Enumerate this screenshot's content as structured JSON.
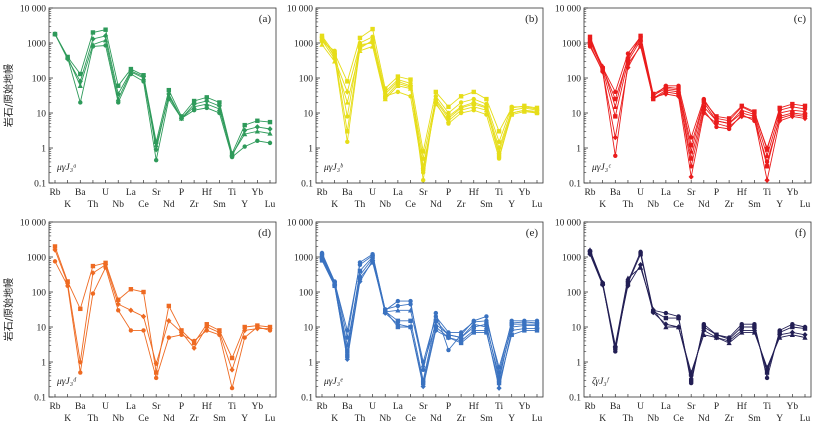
{
  "figure": {
    "ylabel": "岩石/原始地幔",
    "elements_top": [
      "Rb",
      "Ba",
      "U",
      "La",
      "Sr",
      "P",
      "Hf",
      "Ti",
      "Yb"
    ],
    "elements_bottom": [
      "K",
      "Th",
      "Nb",
      "Ce",
      "Nd",
      "Zr",
      "Sm",
      "Y",
      "Lu"
    ]
  },
  "chart_data": [
    {
      "type": "line",
      "panel": "(a)",
      "sample_label": "μγJ₃ᵃ",
      "color": "#2e9a5a",
      "elements": [
        "Rb",
        "K",
        "Ba",
        "Th",
        "U",
        "Nb",
        "La",
        "Ce",
        "Sr",
        "Nd",
        "P",
        "Zr",
        "Hf",
        "Sm",
        "Ti",
        "Y",
        "Yb",
        "Lu"
      ],
      "yscale": "log",
      "ylim": [
        0.1,
        10000
      ],
      "yticks": [
        "0.1",
        "1",
        "10",
        "100",
        "1000",
        "10 000"
      ],
      "series": [
        {
          "marker": "circle",
          "values": [
            1800,
            380,
            20,
            800,
            850,
            20,
            130,
            80,
            0.45,
            25,
            7,
            12,
            14,
            10,
            0.55,
            1.1,
            1.6,
            1.4
          ]
        },
        {
          "marker": "square",
          "values": [
            1800,
            400,
            130,
            2000,
            2400,
            60,
            180,
            120,
            1.5,
            45,
            8,
            22,
            28,
            20,
            0.7,
            4.5,
            6,
            5.5
          ]
        },
        {
          "marker": "diamond",
          "values": [
            1800,
            350,
            80,
            1300,
            1600,
            35,
            160,
            110,
            0.9,
            35,
            7,
            18,
            22,
            16,
            0.6,
            3.2,
            4,
            3.5
          ]
        },
        {
          "marker": "triangle",
          "values": [
            1800,
            390,
            60,
            900,
            1200,
            25,
            150,
            100,
            1.2,
            30,
            7,
            15,
            18,
            13,
            0.65,
            2.5,
            3,
            2.6
          ]
        }
      ]
    },
    {
      "type": "line",
      "panel": "(b)",
      "sample_label": "μγJ₃ᵇ",
      "color": "#e6dd18",
      "elements": [
        "Rb",
        "K",
        "Ba",
        "Th",
        "U",
        "Nb",
        "La",
        "Ce",
        "Sr",
        "Nd",
        "P",
        "Zr",
        "Hf",
        "Sm",
        "Ti",
        "Y",
        "Yb",
        "Lu"
      ],
      "yscale": "log",
      "ylim": [
        0.1,
        10000
      ],
      "yticks": [
        "0.1",
        "1",
        "10",
        "100",
        "1000",
        "10 000"
      ],
      "series": [
        {
          "marker": "circle",
          "values": [
            1500,
            400,
            1.5,
            700,
            1200,
            30,
            40,
            30,
            0.2,
            20,
            5,
            10,
            12,
            9,
            0.5,
            10,
            12,
            10
          ]
        },
        {
          "marker": "square",
          "values": [
            1600,
            500,
            80,
            1400,
            2500,
            50,
            110,
            90,
            0.8,
            40,
            15,
            30,
            40,
            25,
            3,
            14,
            16,
            14
          ]
        },
        {
          "marker": "diamond",
          "values": [
            1200,
            350,
            40,
            900,
            1000,
            35,
            80,
            60,
            0.5,
            25,
            8,
            15,
            20,
            15,
            1,
            12,
            14,
            12
          ]
        },
        {
          "marker": "triangle",
          "values": [
            900,
            300,
            20,
            600,
            800,
            25,
            60,
            50,
            0.3,
            18,
            6,
            12,
            15,
            12,
            0.8,
            10,
            12,
            11
          ]
        },
        {
          "marker": "circle",
          "values": [
            1100,
            600,
            8,
            1000,
            1500,
            40,
            90,
            70,
            0.12,
            30,
            10,
            20,
            25,
            18,
            1.5,
            15,
            15,
            13
          ]
        },
        {
          "marker": "square",
          "values": [
            1300,
            450,
            3,
            800,
            1100,
            28,
            70,
            55,
            0.25,
            22,
            7,
            14,
            18,
            14,
            0.6,
            9,
            11,
            10
          ]
        }
      ]
    },
    {
      "type": "line",
      "panel": "(c)",
      "sample_label": "μγJ₃ᶜ",
      "color": "#ea1c1c",
      "elements": [
        "Rb",
        "K",
        "Ba",
        "Th",
        "U",
        "Nb",
        "La",
        "Ce",
        "Sr",
        "Nd",
        "P",
        "Zr",
        "Hf",
        "Sm",
        "Ti",
        "Y",
        "Yb",
        "Lu"
      ],
      "yscale": "log",
      "ylim": [
        0.1,
        10000
      ],
      "yticks": [
        "0.1",
        "1",
        "10",
        "100",
        "1000",
        "10 000"
      ],
      "series": [
        {
          "marker": "circle",
          "values": [
            1300,
            200,
            40,
            500,
            1500,
            30,
            60,
            60,
            2,
            25,
            7,
            6,
            15,
            10,
            1,
            12,
            15,
            13
          ]
        },
        {
          "marker": "square",
          "values": [
            1100,
            180,
            8,
            300,
            1200,
            25,
            40,
            35,
            0.5,
            15,
            6,
            5,
            10,
            8,
            0.3,
            8,
            10,
            9
          ]
        },
        {
          "marker": "diamond",
          "values": [
            900,
            150,
            2,
            200,
            900,
            28,
            35,
            30,
            0.15,
            10,
            5,
            4,
            8,
            7,
            0.12,
            6,
            8,
            7
          ]
        },
        {
          "marker": "triangle",
          "values": [
            1200,
            220,
            15,
            400,
            1300,
            32,
            50,
            45,
            0.8,
            20,
            6,
            5,
            12,
            9,
            0.6,
            10,
            12,
            11
          ]
        },
        {
          "marker": "circle",
          "values": [
            800,
            160,
            0.6,
            250,
            800,
            26,
            45,
            40,
            0.3,
            12,
            4,
            3.5,
            9,
            6,
            0.4,
            7,
            9,
            8
          ]
        },
        {
          "marker": "square",
          "values": [
            1500,
            190,
            25,
            350,
            1600,
            35,
            55,
            50,
            1.2,
            22,
            8,
            7,
            16,
            11,
            0.9,
            14,
            18,
            16
          ]
        }
      ]
    },
    {
      "type": "line",
      "panel": "(d)",
      "sample_label": "μγJ₃ᵈ",
      "color": "#ee6a22",
      "elements": [
        "Rb",
        "K",
        "Ba",
        "Th",
        "U",
        "Nb",
        "La",
        "Ce",
        "Sr",
        "Nd",
        "P",
        "Zr",
        "Hf",
        "Sm",
        "Ti",
        "Y",
        "Yb",
        "Lu"
      ],
      "yscale": "log",
      "ylim": [
        0.1,
        10000
      ],
      "yticks": [
        "0.1",
        "1",
        "10",
        "100",
        "1000",
        "10 000"
      ],
      "series": [
        {
          "marker": "circle",
          "values": [
            750,
            150,
            0.5,
            90,
            500,
            30,
            8,
            8,
            0.35,
            5,
            6,
            4,
            8,
            6,
            0.18,
            5,
            10,
            8
          ]
        },
        {
          "marker": "square",
          "values": [
            2000,
            200,
            33,
            550,
            680,
            60,
            120,
            100,
            0.5,
            40,
            8,
            3.5,
            12,
            8,
            1.3,
            10,
            11,
            10
          ]
        },
        {
          "marker": "diamond",
          "values": [
            1600,
            180,
            1,
            350,
            600,
            45,
            30,
            20,
            0.9,
            15,
            7,
            2.5,
            10,
            7,
            0.6,
            8,
            9,
            9
          ]
        }
      ]
    },
    {
      "type": "line",
      "panel": "(e)",
      "sample_label": "μγJ₃ᵉ",
      "color": "#3a72c0",
      "elements": [
        "Rb",
        "K",
        "Ba",
        "Th",
        "U",
        "Nb",
        "La",
        "Ce",
        "Sr",
        "Nd",
        "P",
        "Zr",
        "Hf",
        "Sm",
        "Ti",
        "Y",
        "Yb",
        "Lu"
      ],
      "yscale": "log",
      "ylim": [
        0.1,
        10000
      ],
      "yticks": [
        "0.1",
        "1",
        "10",
        "100",
        "1000",
        "10 000"
      ],
      "series": [
        {
          "marker": "circle",
          "values": [
            1300,
            200,
            5,
            700,
            1200,
            30,
            55,
            55,
            0.6,
            25,
            2.2,
            6,
            15,
            20,
            0.5,
            15,
            15,
            15
          ]
        },
        {
          "marker": "square",
          "values": [
            1100,
            180,
            2,
            400,
            1000,
            28,
            15,
            15,
            0.3,
            15,
            6,
            5,
            10,
            12,
            0.3,
            12,
            12,
            12
          ]
        },
        {
          "marker": "diamond",
          "values": [
            900,
            160,
            1.2,
            200,
            800,
            25,
            12,
            10,
            0.2,
            8,
            5,
            4,
            8,
            8,
            0.18,
            8,
            9,
            9
          ]
        },
        {
          "marker": "triangle",
          "values": [
            1000,
            170,
            3,
            300,
            900,
            27,
            30,
            30,
            0.8,
            12,
            6,
            5,
            12,
            10,
            0.4,
            10,
            11,
            11
          ]
        },
        {
          "marker": "circle",
          "values": [
            1200,
            190,
            8,
            600,
            1100,
            32,
            40,
            45,
            1,
            20,
            7,
            7,
            14,
            15,
            0.7,
            13,
            14,
            13
          ]
        },
        {
          "marker": "square",
          "values": [
            800,
            150,
            1.5,
            250,
            700,
            30,
            10,
            10,
            0.25,
            10,
            5,
            3.5,
            7,
            7,
            0.25,
            6,
            8,
            8
          ]
        }
      ]
    },
    {
      "type": "line",
      "panel": "(f)",
      "sample_label": "ζγJ₃ᶠ",
      "color": "#221e54",
      "elements": [
        "Rb",
        "K",
        "Ba",
        "Th",
        "U",
        "Nb",
        "La",
        "Ce",
        "Sr",
        "Nd",
        "P",
        "Zr",
        "Hf",
        "Sm",
        "Ti",
        "Y",
        "Yb",
        "Lu"
      ],
      "yscale": "log",
      "ylim": [
        0.1,
        10000
      ],
      "yticks": [
        "0.1",
        "1",
        "10",
        "100",
        "1000",
        "10 000"
      ],
      "series": [
        {
          "marker": "circle",
          "values": [
            1500,
            180,
            2,
            200,
            1400,
            30,
            25,
            20,
            0.25,
            12,
            6,
            5,
            12,
            12,
            0.35,
            8,
            12,
            10
          ]
        },
        {
          "marker": "square",
          "values": [
            1400,
            170,
            2.5,
            180,
            1200,
            28,
            18,
            18,
            0.3,
            10,
            6,
            4.5,
            10,
            10,
            0.5,
            7,
            10,
            9
          ]
        },
        {
          "marker": "diamond",
          "values": [
            1200,
            160,
            2.8,
            150,
            600,
            26,
            12,
            10,
            0.4,
            8,
            5,
            4,
            8,
            8,
            0.6,
            6,
            7,
            6
          ]
        },
        {
          "marker": "triangle",
          "values": [
            1600,
            190,
            3,
            250,
            500,
            32,
            10,
            10,
            0.5,
            6,
            5,
            3.5,
            7,
            7,
            0.7,
            5,
            6,
            5
          ]
        }
      ]
    }
  ]
}
